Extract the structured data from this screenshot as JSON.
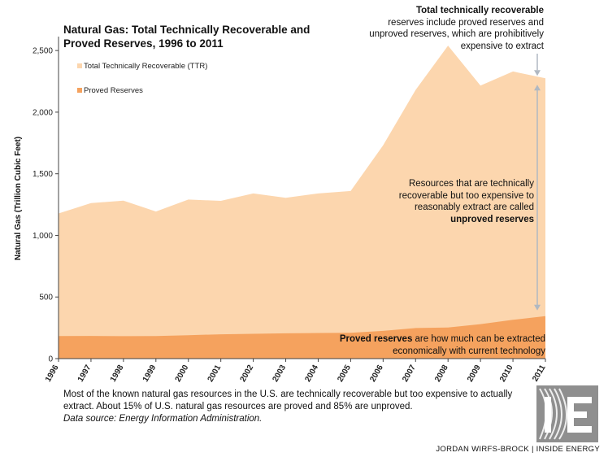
{
  "chart_data": {
    "type": "area",
    "title": "Natural Gas: Total Technically Recoverable and Proved Reserves, 1996 to 2011",
    "title_lines": [
      "Natural Gas: Total Technically Recoverable and",
      "Proved Reserves, 1996 to 2011"
    ],
    "xlabel": "",
    "ylabel": "Natural Gas (Trillion Cubic Feet)",
    "ylim": [
      0,
      2600
    ],
    "yticks": [
      0,
      500,
      1000,
      1500,
      2000,
      2500
    ],
    "ytick_labels": [
      "0",
      "500",
      "1,000",
      "1,500",
      "2,000",
      "2,500"
    ],
    "x": [
      "1996",
      "1997",
      "1998",
      "1999",
      "2000",
      "2001",
      "2002",
      "2003",
      "2004",
      "2005",
      "2006",
      "2007",
      "2008",
      "2009",
      "2010",
      "2011"
    ],
    "grid": false,
    "legend_position": "top-left",
    "series": [
      {
        "name": "Total Technically Recoverable (TTR)",
        "color": "#fcd6ae",
        "values": [
          1178,
          1262,
          1282,
          1194,
          1291,
          1280,
          1340,
          1305,
          1340,
          1360,
          1730,
          2180,
          2540,
          2215,
          2330,
          2275
        ]
      },
      {
        "name": "Proved Reserves",
        "color": "#f5a25e",
        "values": [
          183,
          184,
          182,
          183,
          190,
          197,
          201,
          205,
          208,
          210,
          225,
          248,
          252,
          280,
          315,
          345
        ]
      }
    ],
    "annotations": {
      "top_bold": "Total technically recoverable",
      "top_rest": "reserves include proved reserves and unproved reserves, which are prohibitively expensive to extract",
      "middle_text": "Resources that are technically recoverable but too expensive to reasonably extract are called",
      "middle_bold": "unproved reserves",
      "bottom_bold": "Proved reserves",
      "bottom_rest": " are how much can be extracted economically with current technology"
    }
  },
  "caption": {
    "text": "Most of the known natural gas resources in the U.S. are technically recoverable but too expensive to actually extract. About 15% of U.S. natural gas resources are proved and 85% are unproved.",
    "source": "Data source: Energy Information Administration."
  },
  "credit": "JORDAN WIRFS-BROCK | INSIDE ENERGY",
  "colors": {
    "ttr": "#fcd6ae",
    "proved": "#f5a25e",
    "arrow": "#b0b8c2",
    "axis": "#444444"
  },
  "icons": {
    "logo": "inside-energy-logo"
  }
}
